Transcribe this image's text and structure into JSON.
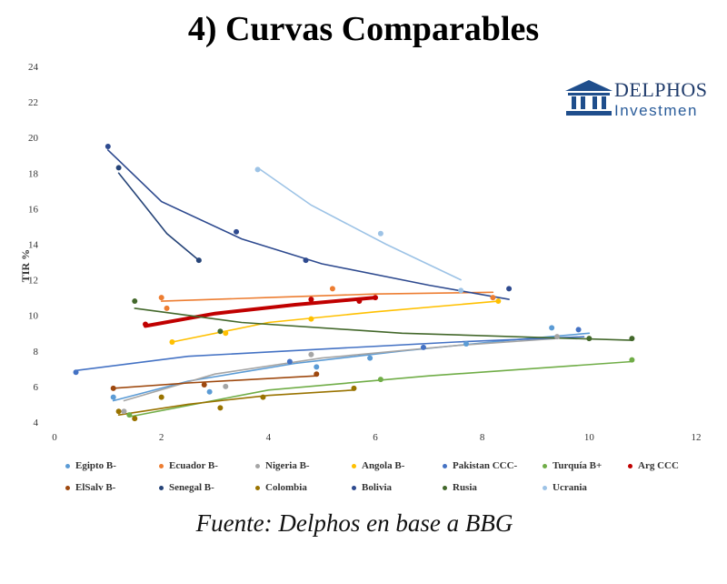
{
  "title": "4) Curvas Comparables",
  "source": "Fuente: Delphos en base a BBG",
  "logo": {
    "name": "DELPHOS",
    "sub": "Investmen",
    "icon": "bank-building-icon"
  },
  "colors": {
    "logo": "#1f4e8c"
  },
  "chart_data": {
    "type": "scatter",
    "title": "",
    "xlabel": "",
    "ylabel": "TIR %",
    "xlim": [
      0,
      12
    ],
    "ylim": [
      4,
      24
    ],
    "xticks": [
      0,
      2,
      4,
      6,
      8,
      10,
      12
    ],
    "yticks": [
      4,
      6,
      8,
      10,
      12,
      14,
      16,
      18,
      20,
      22,
      24
    ],
    "grid": false,
    "legend_position": "bottom",
    "trendlines": true,
    "series": [
      {
        "name": "Egipto B-",
        "color": "#5b9bd5",
        "points": [
          [
            1.1,
            5.4
          ],
          [
            2.9,
            5.7
          ],
          [
            4.9,
            7.1
          ],
          [
            5.9,
            7.6
          ],
          [
            7.7,
            8.4
          ],
          [
            9.3,
            9.3
          ]
        ]
      },
      {
        "name": "Ecuador B-",
        "color": "#ed7d31",
        "points": [
          [
            2.0,
            11.0
          ],
          [
            2.1,
            10.4
          ],
          [
            5.2,
            11.5
          ],
          [
            8.2,
            11.0
          ]
        ]
      },
      {
        "name": "Nigeria B-",
        "color": "#a5a5a5",
        "points": [
          [
            1.3,
            4.6
          ],
          [
            3.2,
            6.0
          ],
          [
            4.8,
            7.8
          ],
          [
            9.4,
            8.8
          ]
        ]
      },
      {
        "name": "Angola B-",
        "color": "#ffc000",
        "points": [
          [
            2.2,
            8.5
          ],
          [
            3.2,
            9.0
          ],
          [
            4.8,
            9.8
          ],
          [
            8.3,
            10.8
          ]
        ]
      },
      {
        "name": "Pakistan CCC-",
        "color": "#4472c4",
        "points": [
          [
            0.4,
            6.8
          ],
          [
            4.4,
            7.4
          ],
          [
            6.9,
            8.2
          ],
          [
            9.8,
            9.2
          ]
        ]
      },
      {
        "name": "Turquía B+",
        "color": "#70ad47",
        "points": [
          [
            1.4,
            4.4
          ],
          [
            6.1,
            6.4
          ],
          [
            10.8,
            7.5
          ]
        ]
      },
      {
        "name": "Arg CCC",
        "color": "#c00000",
        "points": [
          [
            1.7,
            9.5
          ],
          [
            4.8,
            10.9
          ],
          [
            5.7,
            10.8
          ],
          [
            6.0,
            11.0
          ]
        ]
      },
      {
        "name": "ElSalv B-",
        "color": "#9e480e",
        "points": [
          [
            1.1,
            5.9
          ],
          [
            2.8,
            6.1
          ],
          [
            4.9,
            6.7
          ]
        ]
      },
      {
        "name": "Senegal B-",
        "color": "#264478",
        "points": [
          [
            1.2,
            18.3
          ],
          [
            2.7,
            13.1
          ]
        ]
      },
      {
        "name": "Colombia",
        "color": "#997300",
        "points": [
          [
            1.2,
            4.6
          ],
          [
            1.5,
            4.2
          ],
          [
            2.0,
            5.4
          ],
          [
            3.1,
            4.8
          ],
          [
            3.9,
            5.4
          ],
          [
            5.6,
            5.9
          ]
        ]
      },
      {
        "name": "Bolivia",
        "color": "#2e4a8f",
        "points": [
          [
            1.0,
            19.5
          ],
          [
            3.4,
            14.7
          ],
          [
            4.7,
            13.1
          ],
          [
            8.5,
            11.5
          ]
        ]
      },
      {
        "name": "Rusia",
        "color": "#43682b",
        "points": [
          [
            1.5,
            10.8
          ],
          [
            3.1,
            9.1
          ],
          [
            10.0,
            8.7
          ],
          [
            10.8,
            8.7
          ]
        ]
      },
      {
        "name": "Ucrania",
        "color": "#9dc3e6",
        "points": [
          [
            3.8,
            18.2
          ],
          [
            6.1,
            14.6
          ],
          [
            7.6,
            11.4
          ]
        ]
      }
    ],
    "fits": [
      {
        "series": "Egipto B-",
        "points": [
          [
            1.1,
            5.2
          ],
          [
            2.5,
            6.3
          ],
          [
            4.5,
            7.3
          ],
          [
            6.5,
            8.0
          ],
          [
            8.5,
            8.6
          ],
          [
            10.0,
            9.0
          ]
        ]
      },
      {
        "series": "Ecuador B-",
        "points": [
          [
            2.0,
            10.8
          ],
          [
            4.0,
            11.0
          ],
          [
            6.0,
            11.2
          ],
          [
            8.2,
            11.3
          ]
        ]
      },
      {
        "series": "Nigeria B-",
        "points": [
          [
            1.3,
            5.2
          ],
          [
            3.0,
            6.7
          ],
          [
            5.0,
            7.6
          ],
          [
            7.5,
            8.3
          ],
          [
            9.4,
            8.7
          ]
        ]
      },
      {
        "series": "Angola B-",
        "points": [
          [
            2.2,
            8.5
          ],
          [
            4.0,
            9.6
          ],
          [
            6.0,
            10.2
          ],
          [
            8.3,
            10.8
          ]
        ]
      },
      {
        "series": "Pakistan CCC-",
        "points": [
          [
            0.4,
            6.9
          ],
          [
            2.5,
            7.7
          ],
          [
            5.0,
            8.1
          ],
          [
            7.5,
            8.5
          ],
          [
            9.9,
            8.8
          ]
        ]
      },
      {
        "series": "Turquía B+",
        "points": [
          [
            1.4,
            4.3
          ],
          [
            4.0,
            5.8
          ],
          [
            7.0,
            6.6
          ],
          [
            10.8,
            7.4
          ]
        ]
      },
      {
        "series": "Arg CCC",
        "points": [
          [
            1.7,
            9.4
          ],
          [
            3.0,
            10.1
          ],
          [
            4.5,
            10.6
          ],
          [
            6.0,
            11.0
          ]
        ]
      },
      {
        "series": "ElSalv B-",
        "points": [
          [
            1.1,
            5.9
          ],
          [
            2.5,
            6.2
          ],
          [
            4.9,
            6.6
          ]
        ]
      },
      {
        "series": "Senegal B-",
        "points": [
          [
            1.2,
            18.0
          ],
          [
            1.6,
            16.5
          ],
          [
            2.1,
            14.6
          ],
          [
            2.7,
            13.1
          ]
        ]
      },
      {
        "series": "Colombia",
        "points": [
          [
            1.2,
            4.4
          ],
          [
            2.5,
            5.0
          ],
          [
            4.0,
            5.5
          ],
          [
            5.6,
            5.8
          ]
        ]
      },
      {
        "series": "Bolivia",
        "points": [
          [
            1.0,
            19.3
          ],
          [
            2.0,
            16.4
          ],
          [
            3.5,
            14.3
          ],
          [
            5.0,
            12.9
          ],
          [
            7.0,
            11.7
          ],
          [
            8.5,
            10.9
          ]
        ]
      },
      {
        "series": "Rusia",
        "points": [
          [
            1.5,
            10.4
          ],
          [
            3.5,
            9.6
          ],
          [
            6.5,
            9.0
          ],
          [
            10.8,
            8.6
          ]
        ]
      },
      {
        "series": "Ucrania",
        "points": [
          [
            3.8,
            18.3
          ],
          [
            4.8,
            16.2
          ],
          [
            6.2,
            14.0
          ],
          [
            7.6,
            12.0
          ]
        ]
      }
    ]
  }
}
